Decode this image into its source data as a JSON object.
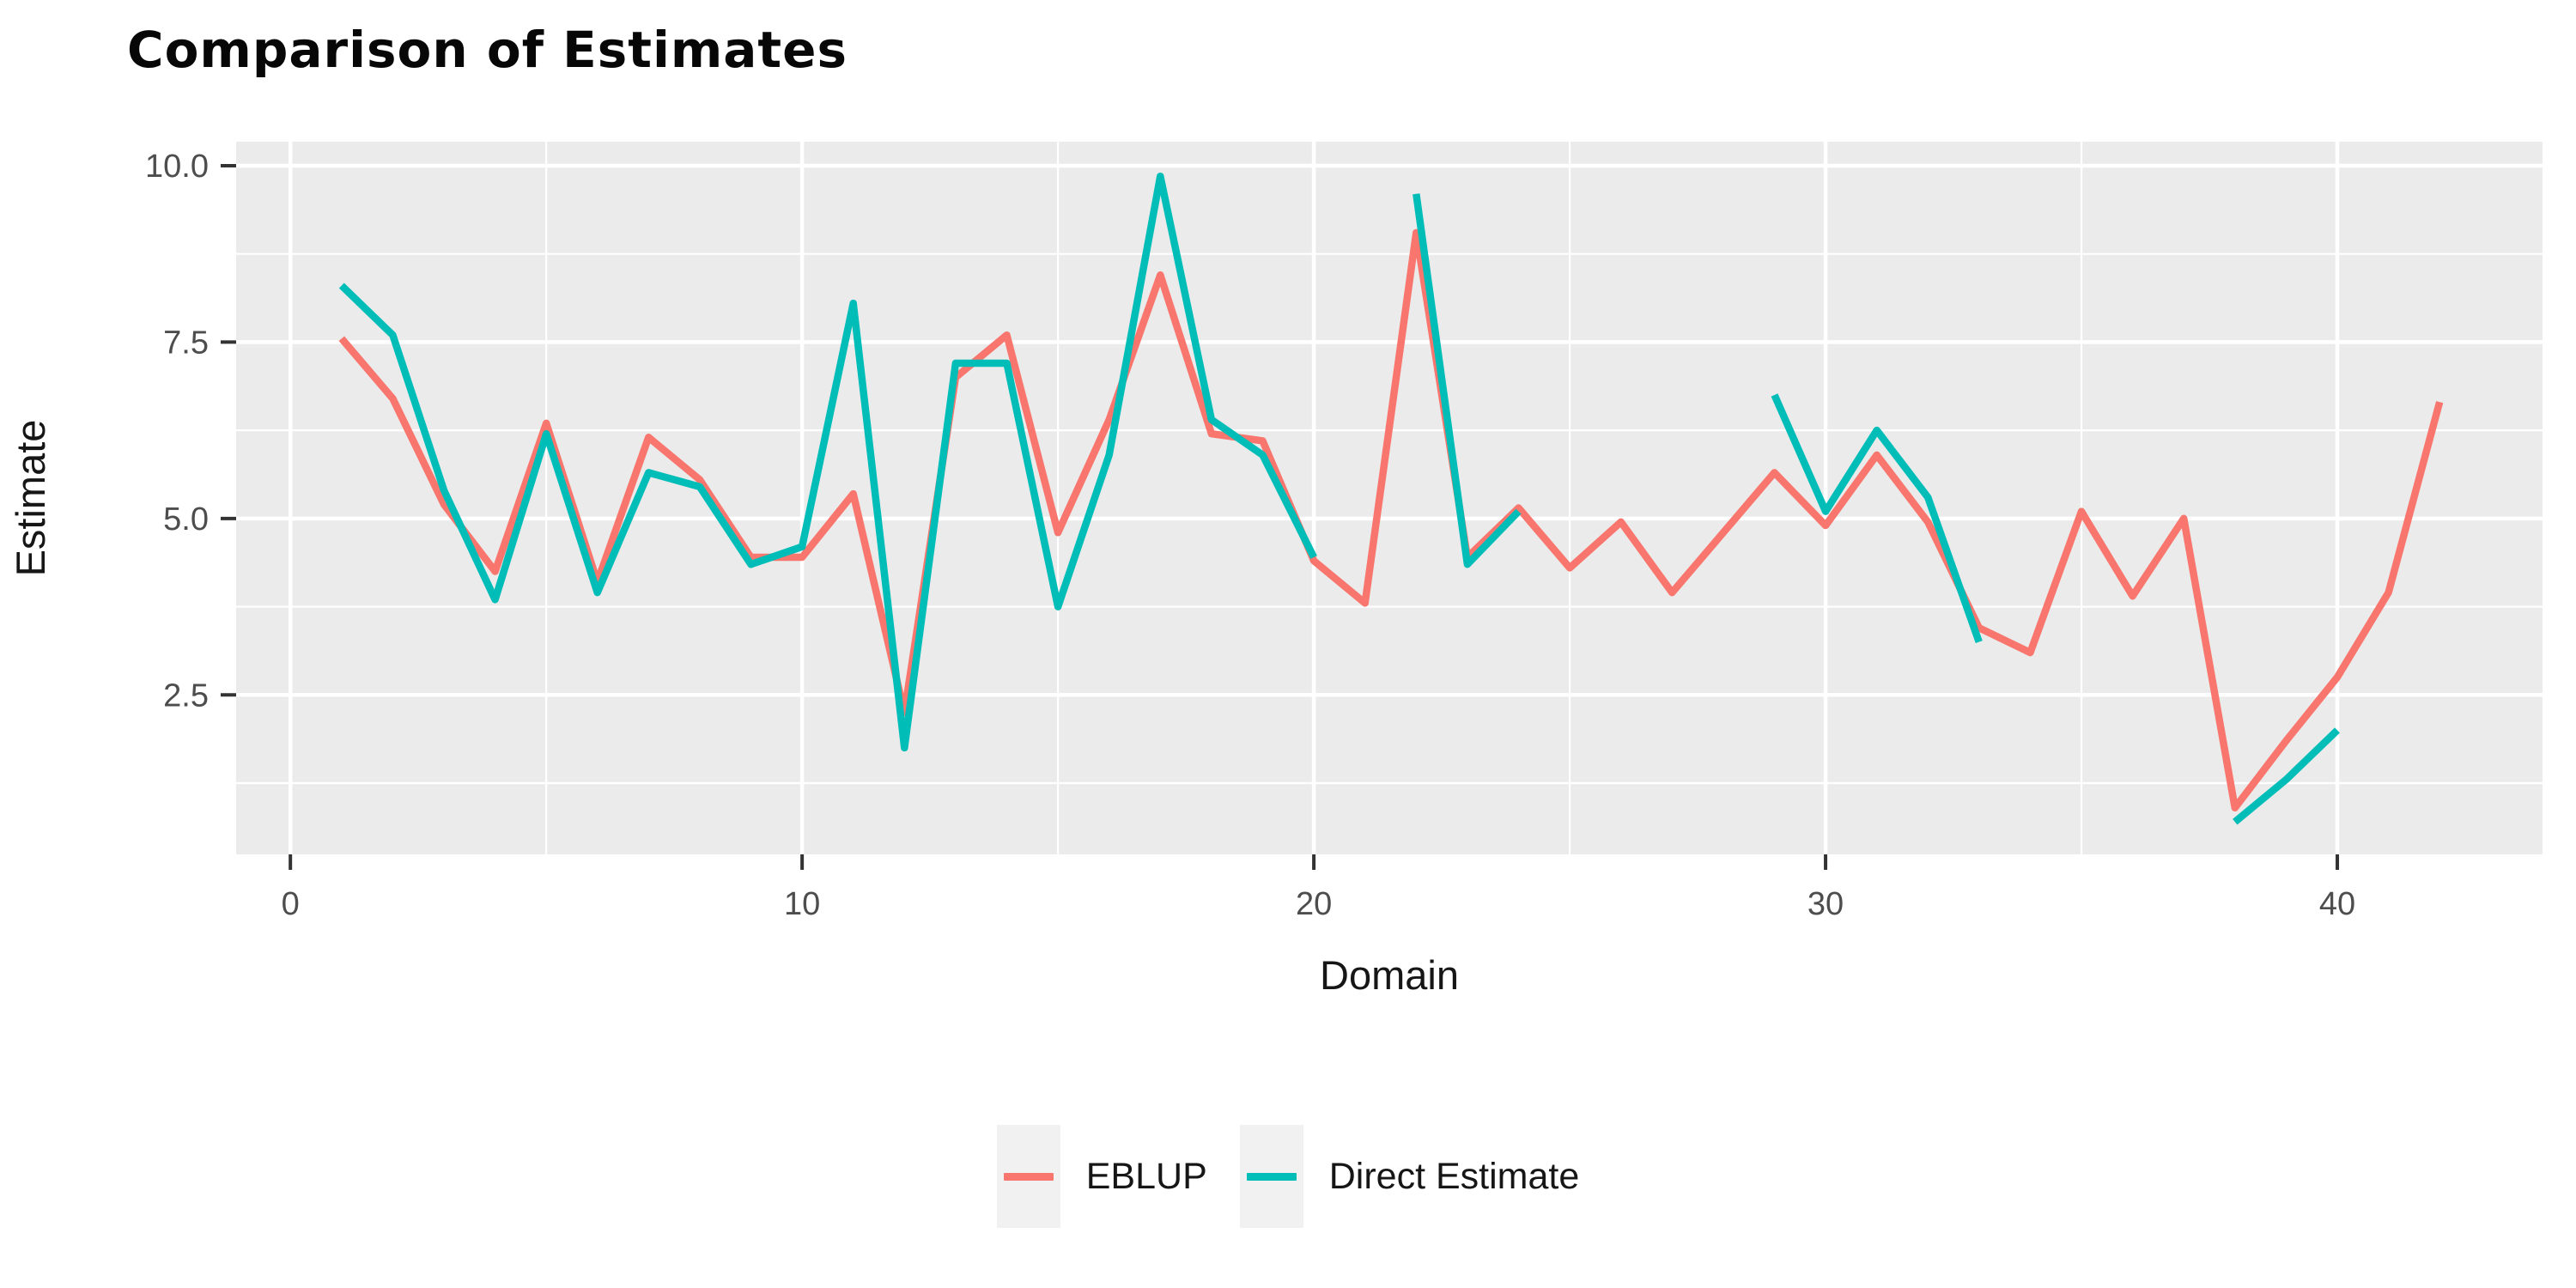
{
  "title": "Comparison of Estimates",
  "chart_data": {
    "type": "line",
    "title": "Comparison of Estimates",
    "xlabel": "Domain",
    "ylabel": "Estimate",
    "x": [
      1,
      2,
      3,
      4,
      5,
      6,
      7,
      8,
      9,
      10,
      11,
      12,
      13,
      14,
      15,
      16,
      17,
      18,
      19,
      20,
      21,
      22,
      23,
      24,
      25,
      26,
      27,
      28,
      29,
      30,
      31,
      32,
      33,
      34,
      35,
      36,
      37,
      38,
      39,
      40,
      41,
      42
    ],
    "series": [
      {
        "name": "EBLUP",
        "color": "#F8766D",
        "values": [
          7.55,
          6.7,
          5.2,
          4.25,
          6.35,
          4.1,
          6.15,
          5.55,
          4.45,
          4.45,
          5.35,
          2.25,
          7.0,
          7.6,
          4.8,
          6.4,
          8.45,
          6.2,
          6.1,
          4.4,
          3.8,
          9.05,
          4.45,
          5.15,
          4.3,
          4.95,
          3.95,
          4.8,
          5.65,
          4.9,
          5.9,
          4.95,
          3.45,
          3.1,
          5.1,
          3.9,
          5.0,
          0.9,
          1.85,
          2.75,
          3.95,
          6.65
        ]
      },
      {
        "name": "Direct Estimate",
        "color": "#00BDB8",
        "values": [
          8.3,
          7.6,
          5.4,
          3.85,
          6.2,
          3.95,
          5.65,
          5.45,
          4.35,
          4.6,
          8.05,
          1.75,
          7.2,
          7.2,
          3.75,
          5.9,
          9.85,
          6.4,
          5.9,
          4.45,
          null,
          9.6,
          4.35,
          5.1,
          null,
          null,
          null,
          null,
          6.75,
          5.1,
          6.25,
          5.3,
          3.25,
          null,
          null,
          null,
          null,
          0.7,
          1.3,
          2.0,
          null,
          null
        ]
      }
    ],
    "x_ticks": [
      0,
      10,
      20,
      30,
      40
    ],
    "x_tick_labels": [
      "0",
      "10",
      "20",
      "30",
      "40"
    ],
    "x_minor_breaks": [
      5,
      15,
      25,
      35
    ],
    "y_ticks": [
      2.5,
      5.0,
      7.5,
      10.0
    ],
    "y_tick_labels": [
      "2.5",
      "5.0",
      "7.5",
      "10.0"
    ],
    "y_minor_breaks": [
      1.25,
      3.75,
      6.25,
      8.75
    ],
    "xlim": [
      -1.06,
      44.01
    ],
    "ylim": [
      0.24,
      10.34
    ],
    "grid": true,
    "legend_position": "bottom",
    "style": {
      "panel_bg": "#EBEBEB",
      "grid_color": "#FFFFFF",
      "major_grid_width": 4.5,
      "minor_grid_width": 2.2,
      "line_width": 8.5,
      "tick_color": "#333333",
      "tick_label_color": "#4d4d4d",
      "legend_key_bg": "#f1f1f1"
    }
  },
  "legend": {
    "items": [
      {
        "label": "EBLUP",
        "color": "#F8766D"
      },
      {
        "label": "Direct Estimate",
        "color": "#00BDB8"
      }
    ]
  }
}
